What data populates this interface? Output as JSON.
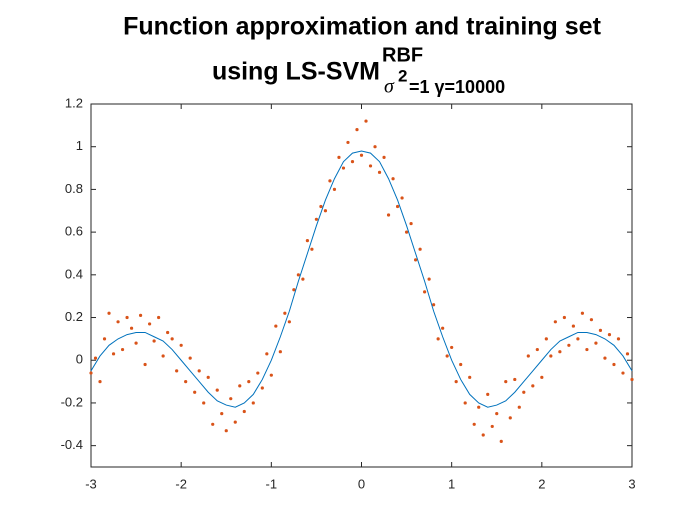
{
  "chart_data": {
    "type": "scatter",
    "title": "Function approximation and training set",
    "title_line2": "using LS-SVM",
    "title_superscript": "RBF",
    "title_sigma": "σ",
    "title_sigma_exp": "2",
    "title_params": "=1 γ=10000",
    "xlim": [
      -3,
      3
    ],
    "ylim": [
      -0.5,
      1.2
    ],
    "xticks": [
      -3,
      -2,
      -1,
      0,
      1,
      2,
      3
    ],
    "yticks": [
      -0.4,
      -0.2,
      0,
      0.2,
      0.4,
      0.6,
      0.8,
      1,
      1.2
    ],
    "grid": false,
    "series": [
      {
        "style": "dots",
        "color": "#D95319",
        "x": [
          -3,
          -2.95,
          -2.9,
          -2.85,
          -2.8,
          -2.75,
          -2.7,
          -2.65,
          -2.6,
          -2.55,
          -2.5,
          -2.45,
          -2.4,
          -2.35,
          -2.3,
          -2.25,
          -2.2,
          -2.15,
          -2.1,
          -2.05,
          -2,
          -1.95,
          -1.9,
          -1.85,
          -1.8,
          -1.75,
          -1.7,
          -1.65,
          -1.6,
          -1.55,
          -1.5,
          -1.45,
          -1.4,
          -1.35,
          -1.3,
          -1.25,
          -1.2,
          -1.15,
          -1.1,
          -1.05,
          -1,
          -0.95,
          -0.9,
          -0.85,
          -0.8,
          -0.75,
          -0.7,
          -0.65,
          -0.6,
          -0.55,
          -0.5,
          -0.45,
          -0.4,
          -0.35,
          -0.3,
          -0.25,
          -0.2,
          -0.15,
          -0.1,
          -0.05,
          0,
          0.05,
          0.1,
          0.15,
          0.2,
          0.25,
          0.3,
          0.35,
          0.4,
          0.45,
          0.5,
          0.55,
          0.6,
          0.65,
          0.7,
          0.75,
          0.8,
          0.85,
          0.9,
          0.95,
          1,
          1.05,
          1.1,
          1.15,
          1.2,
          1.25,
          1.3,
          1.35,
          1.4,
          1.45,
          1.5,
          1.55,
          1.6,
          1.65,
          1.7,
          1.75,
          1.8,
          1.85,
          1.9,
          1.95,
          2,
          2.05,
          2.1,
          2.15,
          2.2,
          2.25,
          2.3,
          2.35,
          2.4,
          2.45,
          2.5,
          2.55,
          2.6,
          2.65,
          2.7,
          2.75,
          2.8,
          2.85,
          2.9,
          2.95,
          3
        ],
        "values": [
          -0.06,
          0.01,
          -0.1,
          0.1,
          0.22,
          0.03,
          0.18,
          0.05,
          0.2,
          0.15,
          0.08,
          0.21,
          -0.02,
          0.17,
          0.09,
          0.2,
          0.02,
          0.13,
          0.1,
          -0.05,
          0.07,
          -0.1,
          0.01,
          -0.15,
          -0.05,
          -0.2,
          -0.08,
          -0.3,
          -0.14,
          -0.25,
          -0.33,
          -0.18,
          -0.29,
          -0.12,
          -0.24,
          -0.1,
          -0.2,
          -0.06,
          -0.13,
          0.03,
          -0.07,
          0.16,
          0.04,
          0.22,
          0.18,
          0.33,
          0.4,
          0.38,
          0.56,
          0.52,
          0.66,
          0.72,
          0.7,
          0.84,
          0.8,
          0.95,
          0.9,
          1.02,
          0.93,
          1.08,
          0.96,
          1.12,
          0.91,
          1,
          0.88,
          0.95,
          0.68,
          0.85,
          0.72,
          0.76,
          0.6,
          0.64,
          0.47,
          0.52,
          0.32,
          0.38,
          0.26,
          0.1,
          0.15,
          0.02,
          0.06,
          -0.1,
          -0.02,
          -0.2,
          -0.08,
          -0.3,
          -0.22,
          -0.35,
          -0.16,
          -0.31,
          -0.25,
          -0.38,
          -0.1,
          -0.27,
          -0.09,
          -0.22,
          -0.15,
          0.02,
          -0.12,
          0.05,
          -0.08,
          0.1,
          0.02,
          0.18,
          0.04,
          0.2,
          0.07,
          0.16,
          0.1,
          0.22,
          0.05,
          0.19,
          0.08,
          0.14,
          0.01,
          0.12,
          -0.02,
          0.1,
          -0.06,
          0.03,
          -0.09
        ]
      },
      {
        "style": "line",
        "color": "#0072BD",
        "x": [
          -3,
          -2.9,
          -2.8,
          -2.7,
          -2.6,
          -2.5,
          -2.4,
          -2.3,
          -2.2,
          -2.1,
          -2,
          -1.9,
          -1.8,
          -1.7,
          -1.6,
          -1.5,
          -1.4,
          -1.3,
          -1.2,
          -1.1,
          -1,
          -0.9,
          -0.8,
          -0.7,
          -0.6,
          -0.5,
          -0.4,
          -0.3,
          -0.2,
          -0.1,
          0,
          0.1,
          0.2,
          0.3,
          0.4,
          0.5,
          0.6,
          0.7,
          0.8,
          0.9,
          1,
          1.1,
          1.2,
          1.3,
          1.4,
          1.5,
          1.6,
          1.7,
          1.8,
          1.9,
          2,
          2.1,
          2.2,
          2.3,
          2.4,
          2.5,
          2.6,
          2.7,
          2.8,
          2.9,
          3
        ],
        "values": [
          -0.05,
          0.02,
          0.07,
          0.1,
          0.12,
          0.13,
          0.13,
          0.11,
          0.09,
          0.05,
          0,
          -0.05,
          -0.1,
          -0.15,
          -0.19,
          -0.21,
          -0.22,
          -0.2,
          -0.16,
          -0.09,
          0,
          0.11,
          0.23,
          0.37,
          0.5,
          0.63,
          0.75,
          0.85,
          0.93,
          0.97,
          0.98,
          0.97,
          0.93,
          0.85,
          0.75,
          0.63,
          0.5,
          0.37,
          0.23,
          0.11,
          0,
          -0.09,
          -0.16,
          -0.2,
          -0.22,
          -0.21,
          -0.19,
          -0.15,
          -0.1,
          -0.05,
          0,
          0.05,
          0.09,
          0.11,
          0.13,
          0.13,
          0.12,
          0.1,
          0.07,
          0.02,
          -0.05
        ]
      }
    ]
  }
}
